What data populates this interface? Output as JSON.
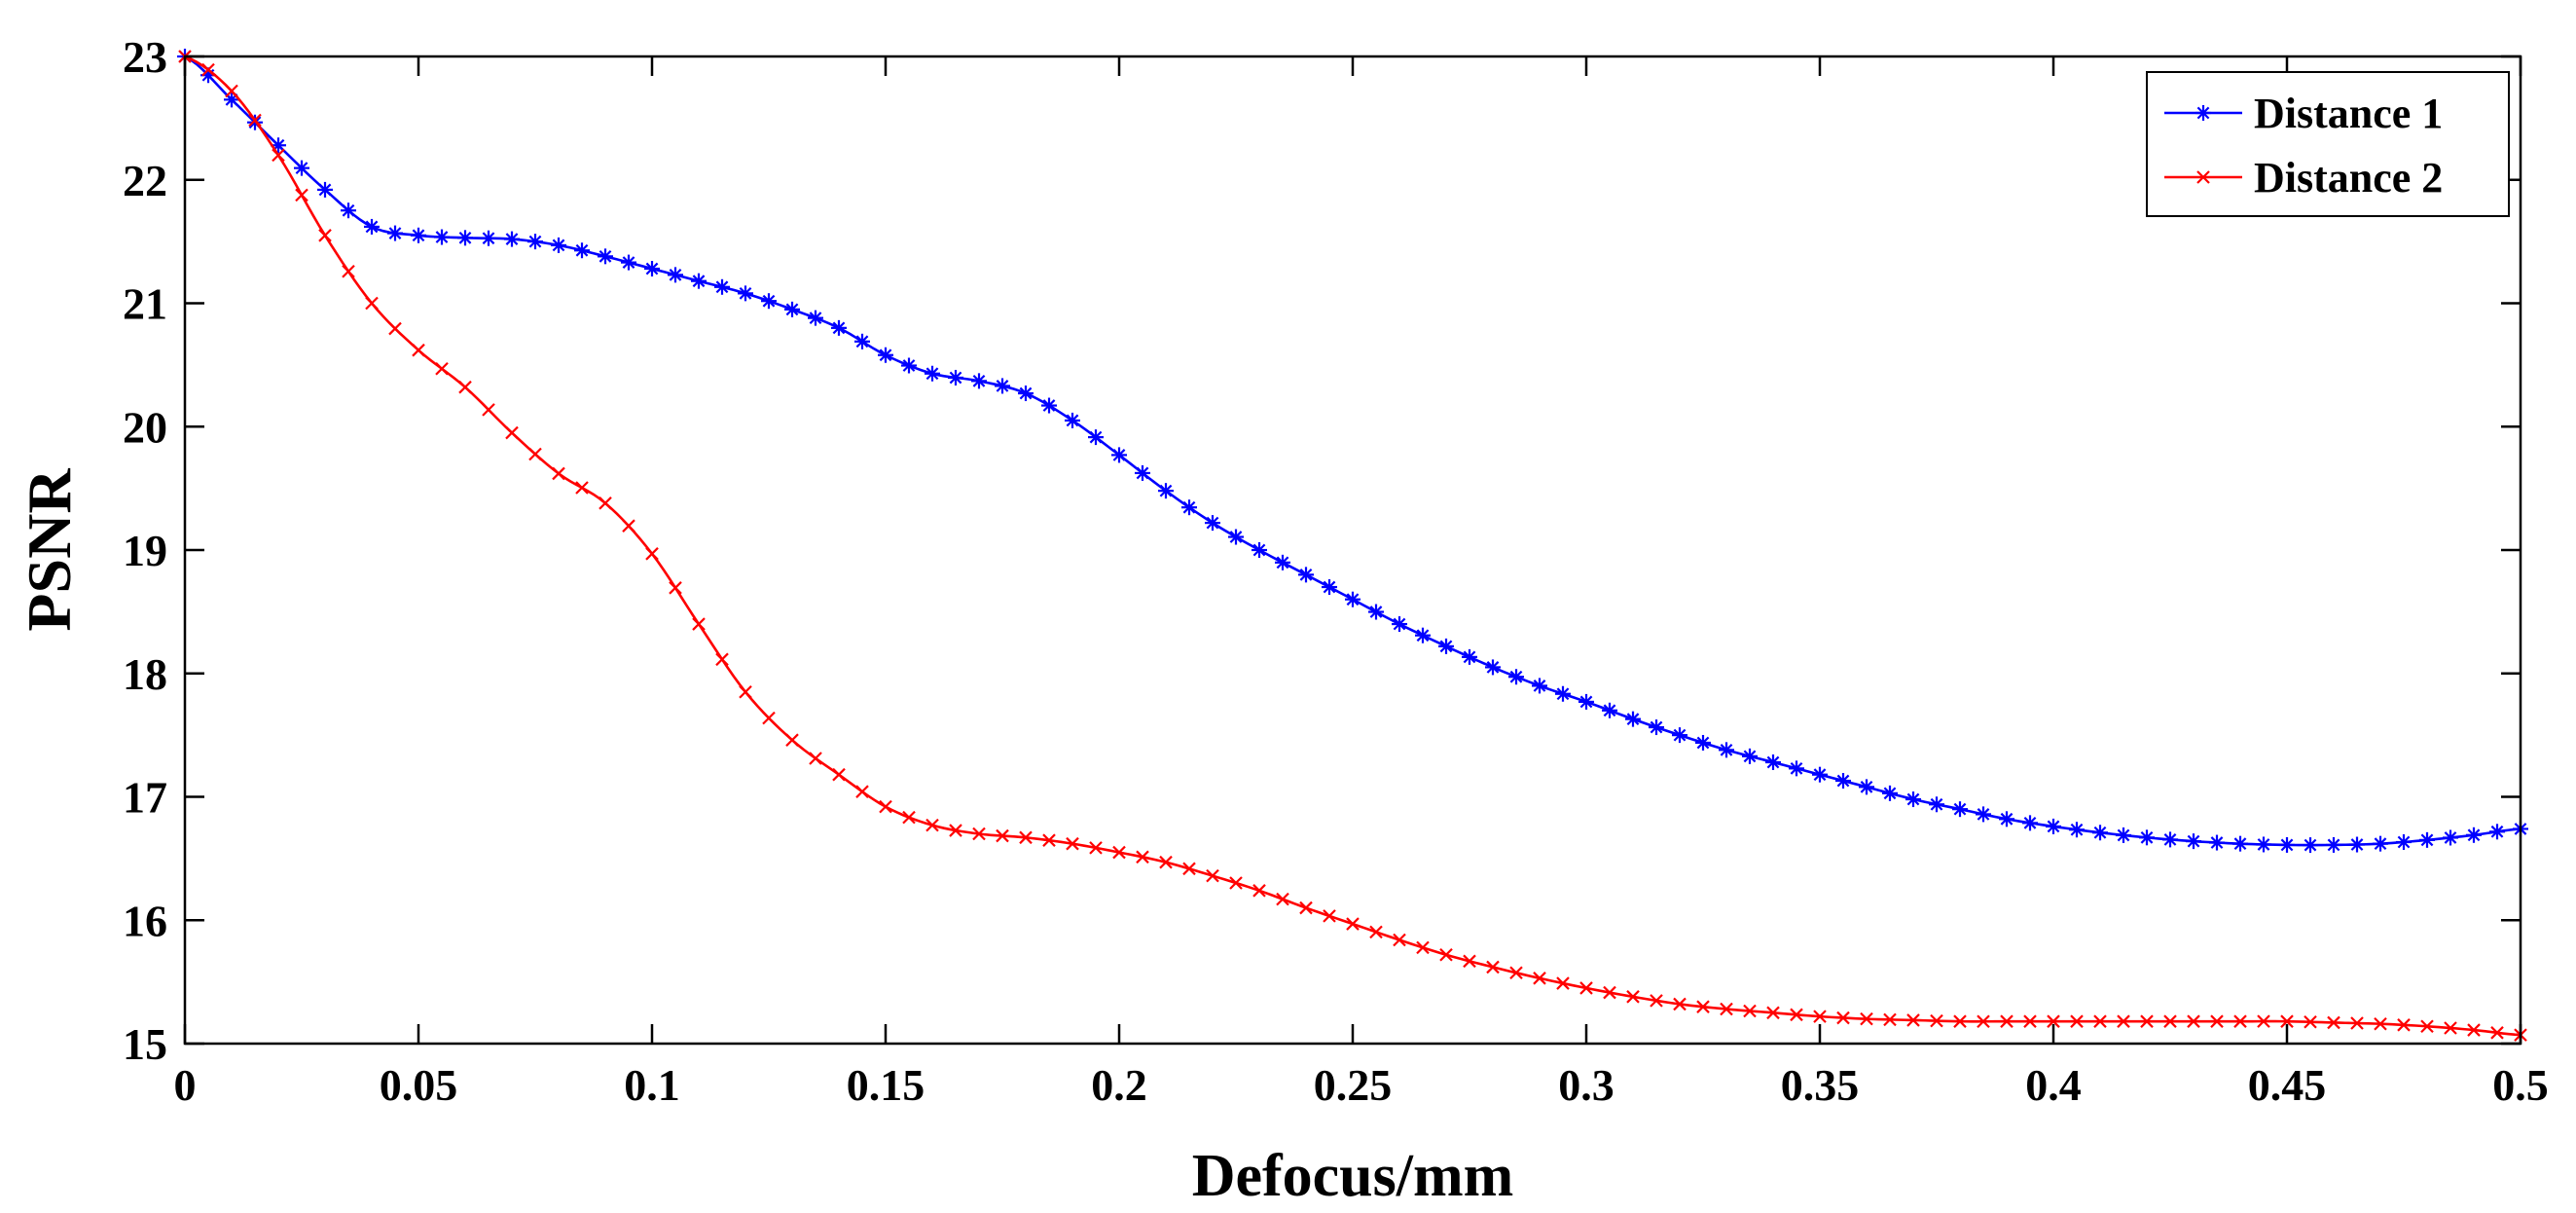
{
  "chart_data": {
    "type": "line",
    "title": "",
    "xlabel": "Defocus/mm",
    "ylabel": "PSNR",
    "xlim": [
      0,
      0.5
    ],
    "ylim": [
      15,
      23
    ],
    "xticks": [
      0,
      0.05,
      0.1,
      0.15,
      0.2,
      0.25,
      0.3,
      0.35,
      0.4,
      0.45,
      0.5
    ],
    "xtick_labels": [
      "0",
      "0.05",
      "0.1",
      "0.15",
      "0.2",
      "0.25",
      "0.3",
      "0.35",
      "0.4",
      "0.45",
      "0.5"
    ],
    "yticks": [
      15,
      16,
      17,
      18,
      19,
      20,
      21,
      22,
      23
    ],
    "ytick_labels": [
      "15",
      "16",
      "17",
      "18",
      "19",
      "20",
      "21",
      "22",
      "23"
    ],
    "grid": false,
    "legend_position": "top-right",
    "marker_step": 0.005,
    "series": [
      {
        "name": "Distance 1",
        "color": "#0000ff",
        "marker": "asterisk",
        "points": [
          [
            0,
            23.0
          ],
          [
            0.01,
            22.65
          ],
          [
            0.02,
            22.28
          ],
          [
            0.03,
            21.92
          ],
          [
            0.04,
            21.62
          ],
          [
            0.05,
            21.55
          ],
          [
            0.06,
            21.53
          ],
          [
            0.07,
            21.52
          ],
          [
            0.08,
            21.47
          ],
          [
            0.09,
            21.38
          ],
          [
            0.1,
            21.28
          ],
          [
            0.11,
            21.18
          ],
          [
            0.12,
            21.08
          ],
          [
            0.13,
            20.95
          ],
          [
            0.14,
            20.8
          ],
          [
            0.15,
            20.58
          ],
          [
            0.16,
            20.43
          ],
          [
            0.17,
            20.37
          ],
          [
            0.18,
            20.27
          ],
          [
            0.19,
            20.05
          ],
          [
            0.2,
            19.77
          ],
          [
            0.21,
            19.48
          ],
          [
            0.22,
            19.22
          ],
          [
            0.23,
            19.0
          ],
          [
            0.24,
            18.8
          ],
          [
            0.25,
            18.6
          ],
          [
            0.26,
            18.4
          ],
          [
            0.27,
            18.22
          ],
          [
            0.28,
            18.05
          ],
          [
            0.29,
            17.9
          ],
          [
            0.3,
            17.77
          ],
          [
            0.31,
            17.63
          ],
          [
            0.32,
            17.5
          ],
          [
            0.33,
            17.38
          ],
          [
            0.34,
            17.28
          ],
          [
            0.35,
            17.18
          ],
          [
            0.36,
            17.08
          ],
          [
            0.37,
            16.98
          ],
          [
            0.38,
            16.9
          ],
          [
            0.39,
            16.82
          ],
          [
            0.4,
            16.76
          ],
          [
            0.41,
            16.71
          ],
          [
            0.42,
            16.67
          ],
          [
            0.43,
            16.64
          ],
          [
            0.44,
            16.62
          ],
          [
            0.45,
            16.61
          ],
          [
            0.46,
            16.61
          ],
          [
            0.47,
            16.62
          ],
          [
            0.48,
            16.65
          ],
          [
            0.49,
            16.69
          ],
          [
            0.5,
            16.74
          ]
        ]
      },
      {
        "name": "Distance 2",
        "color": "#ff0000",
        "marker": "x",
        "points": [
          [
            0,
            23.0
          ],
          [
            0.01,
            22.72
          ],
          [
            0.02,
            22.2
          ],
          [
            0.03,
            21.55
          ],
          [
            0.04,
            21.0
          ],
          [
            0.05,
            20.62
          ],
          [
            0.06,
            20.32
          ],
          [
            0.07,
            19.95
          ],
          [
            0.08,
            19.62
          ],
          [
            0.09,
            19.38
          ],
          [
            0.1,
            18.97
          ],
          [
            0.11,
            18.4
          ],
          [
            0.12,
            17.85
          ],
          [
            0.13,
            17.46
          ],
          [
            0.14,
            17.18
          ],
          [
            0.15,
            16.92
          ],
          [
            0.16,
            16.77
          ],
          [
            0.17,
            16.7
          ],
          [
            0.18,
            16.67
          ],
          [
            0.19,
            16.62
          ],
          [
            0.2,
            16.55
          ],
          [
            0.21,
            16.47
          ],
          [
            0.22,
            16.36
          ],
          [
            0.23,
            16.24
          ],
          [
            0.24,
            16.1
          ],
          [
            0.25,
            15.97
          ],
          [
            0.26,
            15.84
          ],
          [
            0.27,
            15.72
          ],
          [
            0.28,
            15.62
          ],
          [
            0.29,
            15.53
          ],
          [
            0.3,
            15.45
          ],
          [
            0.31,
            15.38
          ],
          [
            0.32,
            15.32
          ],
          [
            0.33,
            15.28
          ],
          [
            0.34,
            15.25
          ],
          [
            0.35,
            15.22
          ],
          [
            0.36,
            15.2
          ],
          [
            0.37,
            15.19
          ],
          [
            0.38,
            15.18
          ],
          [
            0.39,
            15.18
          ],
          [
            0.4,
            15.18
          ],
          [
            0.41,
            15.18
          ],
          [
            0.42,
            15.18
          ],
          [
            0.43,
            15.18
          ],
          [
            0.44,
            15.18
          ],
          [
            0.45,
            15.18
          ],
          [
            0.46,
            15.17
          ],
          [
            0.47,
            15.16
          ],
          [
            0.48,
            15.14
          ],
          [
            0.49,
            15.11
          ],
          [
            0.5,
            15.07
          ]
        ]
      }
    ]
  }
}
